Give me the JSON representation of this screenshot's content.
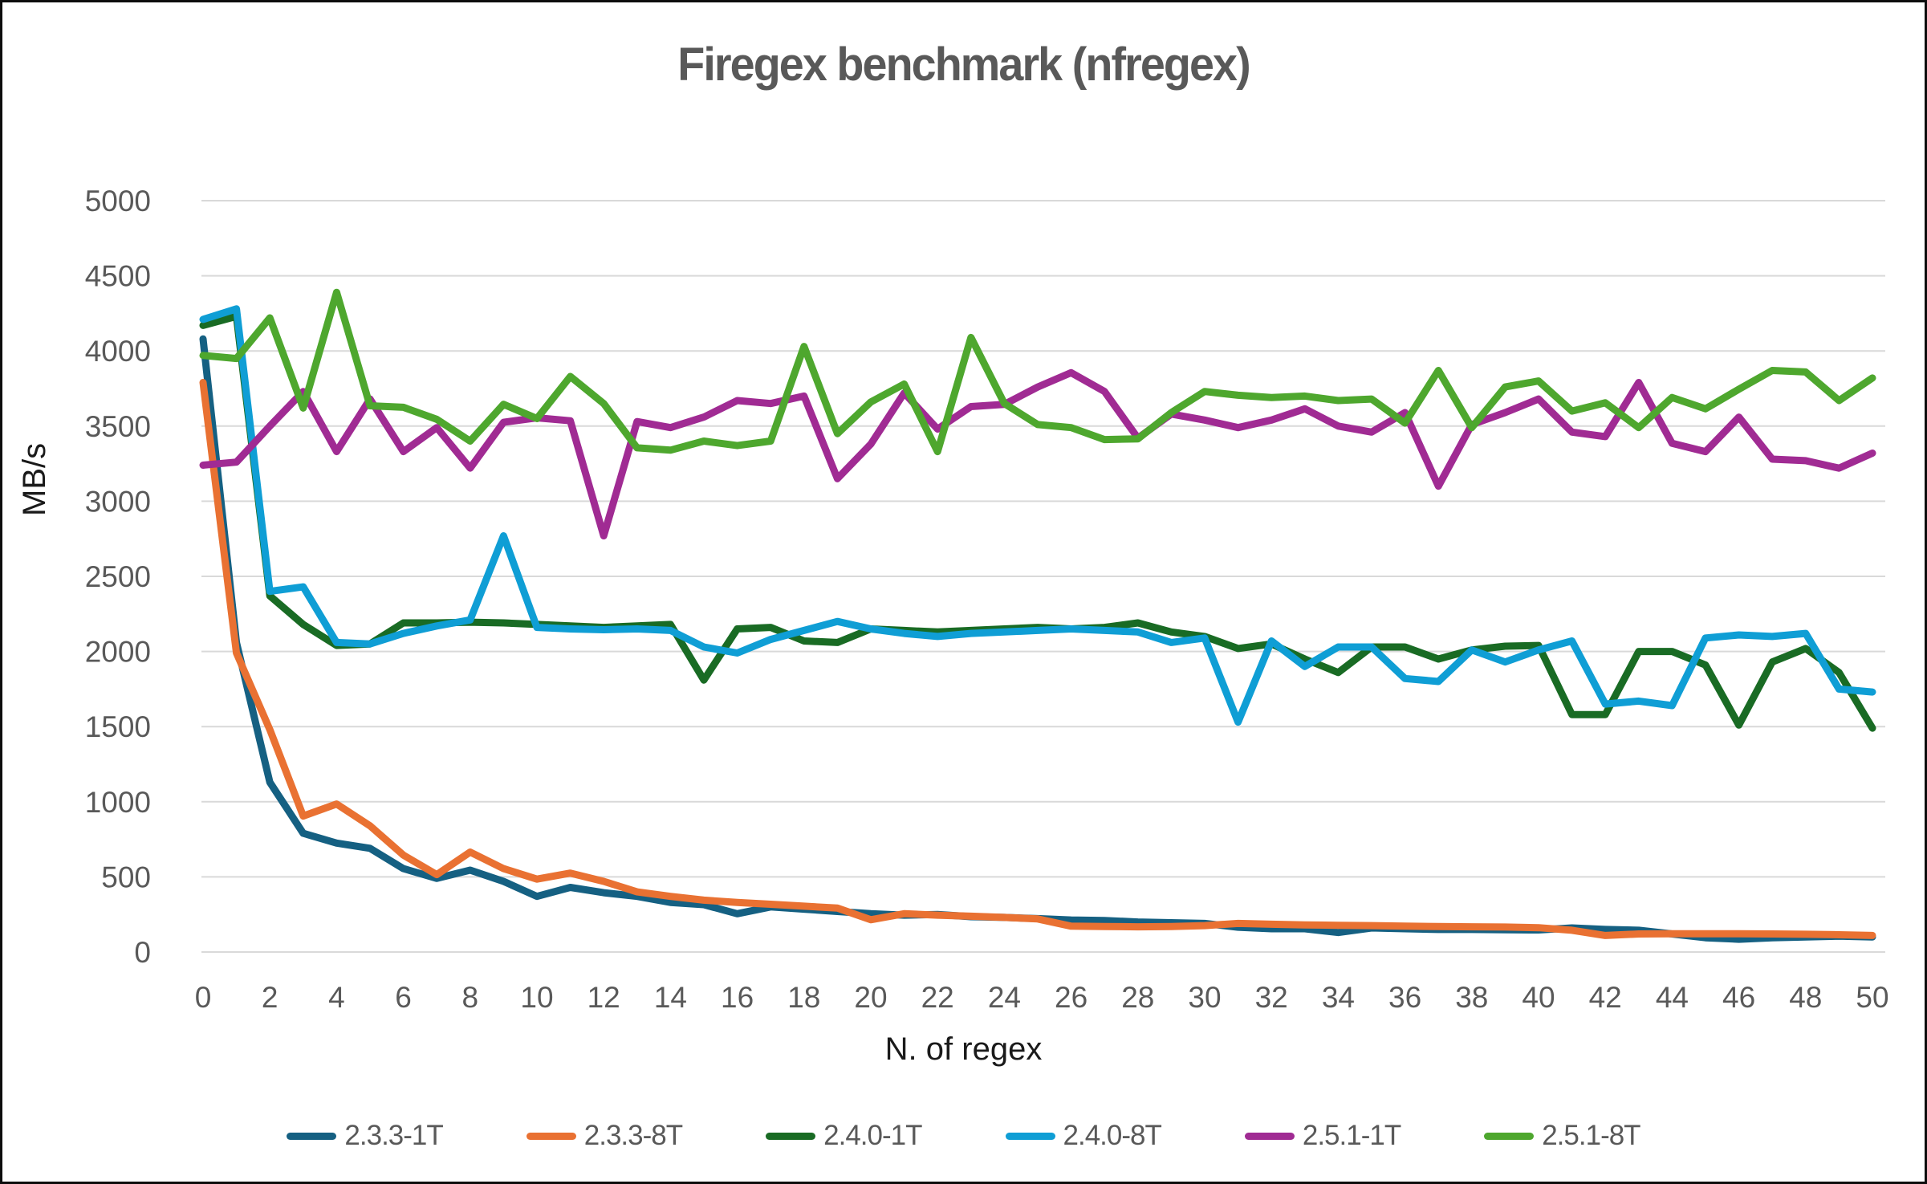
{
  "title": "Firegex benchmark (nfregex)",
  "chart_data": {
    "type": "line",
    "title": "Firegex benchmark (nfregex)",
    "xlabel": "N. of regex",
    "ylabel": "MB/s",
    "xlim": [
      0,
      50
    ],
    "ylim": [
      0,
      5000
    ],
    "grid": "horizontal",
    "legend_position": "bottom",
    "y_ticks": [
      0,
      500,
      1000,
      1500,
      2000,
      2500,
      3000,
      3500,
      4000,
      4500,
      5000
    ],
    "x_ticks": [
      0,
      2,
      4,
      6,
      8,
      10,
      12,
      14,
      16,
      18,
      20,
      22,
      24,
      26,
      28,
      30,
      32,
      34,
      36,
      38,
      40,
      42,
      44,
      46,
      48,
      50
    ],
    "x": [
      0,
      1,
      2,
      3,
      4,
      5,
      6,
      7,
      8,
      9,
      10,
      11,
      12,
      13,
      14,
      15,
      16,
      17,
      18,
      19,
      20,
      21,
      22,
      23,
      24,
      25,
      26,
      27,
      28,
      29,
      30,
      31,
      32,
      33,
      34,
      35,
      36,
      37,
      38,
      39,
      40,
      41,
      42,
      43,
      44,
      45,
      46,
      47,
      48,
      49,
      50
    ],
    "series": [
      {
        "name": "2.3.3-1T",
        "color": "#156082",
        "values": [
          4080,
          2060,
          1130,
          790,
          725,
          690,
          555,
          490,
          545,
          470,
          370,
          430,
          395,
          370,
          330,
          315,
          255,
          300,
          285,
          270,
          255,
          245,
          250,
          235,
          230,
          222,
          213,
          210,
          200,
          195,
          190,
          165,
          155,
          155,
          130,
          160,
          155,
          150,
          150,
          148,
          147,
          160,
          150,
          145,
          120,
          95,
          85,
          95,
          100,
          105,
          100
        ]
      },
      {
        "name": "2.3.3-8T",
        "color": "#E97132",
        "values": [
          3790,
          1990,
          1480,
          905,
          985,
          840,
          645,
          515,
          665,
          555,
          485,
          525,
          470,
          400,
          370,
          345,
          330,
          318,
          305,
          292,
          215,
          255,
          245,
          238,
          230,
          220,
          172,
          170,
          168,
          170,
          176,
          190,
          185,
          180,
          178,
          176,
          172,
          170,
          168,
          166,
          162,
          145,
          110,
          120,
          122,
          122,
          121,
          120,
          118,
          115,
          110
        ]
      },
      {
        "name": "2.4.0-1T",
        "color": "#196B24",
        "values": [
          4170,
          4230,
          2370,
          2180,
          2040,
          2050,
          2190,
          2190,
          2195,
          2190,
          2180,
          2170,
          2160,
          2170,
          2180,
          1810,
          2150,
          2160,
          2070,
          2060,
          2150,
          2140,
          2130,
          2140,
          2150,
          2160,
          2150,
          2160,
          2190,
          2130,
          2100,
          2020,
          2050,
          1950,
          1860,
          2030,
          2030,
          1950,
          2010,
          2035,
          2040,
          1580,
          1580,
          2000,
          2000,
          1910,
          1510,
          1930,
          2020,
          1860,
          1490
        ]
      },
      {
        "name": "2.4.0-8T",
        "color": "#0F9ED5",
        "values": [
          4210,
          4280,
          2400,
          2430,
          2060,
          2050,
          2120,
          2170,
          2210,
          2770,
          2160,
          2150,
          2145,
          2150,
          2140,
          2030,
          1990,
          2080,
          2140,
          2200,
          2150,
          2120,
          2100,
          2120,
          2130,
          2140,
          2150,
          2140,
          2130,
          2060,
          2090,
          1530,
          2070,
          1900,
          2030,
          2030,
          1820,
          1800,
          2010,
          1930,
          2010,
          2070,
          1650,
          1670,
          1640,
          2090,
          2110,
          2100,
          2120,
          1750,
          1730
        ]
      },
      {
        "name": "2.5.1-1T",
        "color": "#A02B93",
        "values": [
          3240,
          3260,
          3500,
          3730,
          3330,
          3680,
          3330,
          3490,
          3220,
          3525,
          3555,
          3535,
          2770,
          3530,
          3490,
          3560,
          3670,
          3650,
          3700,
          3150,
          3380,
          3720,
          3480,
          3630,
          3645,
          3760,
          3855,
          3730,
          3420,
          3580,
          3540,
          3490,
          3540,
          3615,
          3500,
          3460,
          3590,
          3100,
          3510,
          3590,
          3680,
          3460,
          3430,
          3790,
          3385,
          3330,
          3560,
          3280,
          3270,
          3220,
          3320
        ]
      },
      {
        "name": "2.5.1-8T",
        "color": "#4EA72E",
        "values": [
          3970,
          3950,
          4220,
          3620,
          4390,
          3635,
          3625,
          3545,
          3400,
          3645,
          3550,
          3830,
          3650,
          3355,
          3340,
          3400,
          3370,
          3400,
          4030,
          3450,
          3660,
          3780,
          3330,
          4090,
          3650,
          3510,
          3490,
          3410,
          3415,
          3590,
          3730,
          3705,
          3690,
          3700,
          3670,
          3680,
          3520,
          3870,
          3490,
          3760,
          3800,
          3600,
          3655,
          3490,
          3690,
          3615,
          3745,
          3870,
          3860,
          3670,
          3820
        ]
      }
    ]
  }
}
